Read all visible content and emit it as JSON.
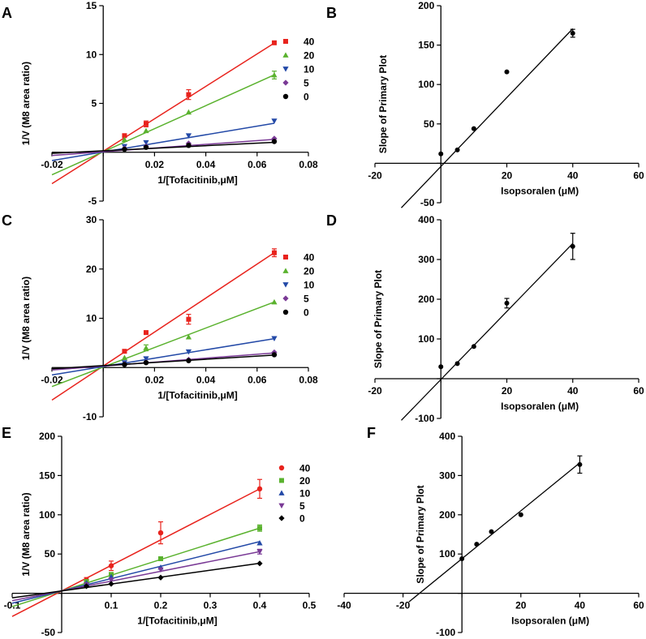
{
  "figure": {
    "panels": [
      "A",
      "B",
      "C",
      "D",
      "E",
      "F"
    ],
    "series_colors": {
      "40": "#e8231d",
      "20": "#5ab22e",
      "10": "#2349a7",
      "5": "#7a3a96",
      "0": "#000000"
    }
  },
  "chart_data": [
    {
      "panel": "A",
      "type": "line",
      "xlabel": "1/[Tofacitinib,μM]",
      "ylabel": "1/V (M8 area ratio)",
      "xlim": [
        -0.02,
        0.08
      ],
      "ylim": [
        -5,
        15
      ],
      "x_ticks": [
        -0.02,
        0,
        0.02,
        0.04,
        0.06,
        0.08
      ],
      "y_ticks": [
        -5,
        0,
        5,
        10,
        15
      ],
      "x_tick_labels": [
        "-0.02",
        "",
        "0.02",
        "0.04",
        "0.06",
        "0.08"
      ],
      "y_tick_labels": [
        "-5",
        "",
        "5",
        "10",
        "15"
      ],
      "fit_range": [
        -0.02,
        0.0667
      ],
      "legend_position": "top-right",
      "x": [
        0.0083,
        0.0167,
        0.0333,
        0.0667
      ],
      "series": [
        {
          "name": "40",
          "marker": "square",
          "values": [
            1.7,
            2.9,
            5.9,
            11.2
          ],
          "errors": [
            0,
            0.3,
            0.5,
            0
          ],
          "fit": {
            "slope": 166,
            "intercept": 0.1
          }
        },
        {
          "name": "20",
          "marker": "triangle-up",
          "values": [
            1.3,
            2.2,
            4.1,
            7.9
          ],
          "errors": [
            0,
            0,
            0,
            0.4
          ],
          "fit": {
            "slope": 118,
            "intercept": 0.05
          }
        },
        {
          "name": "10",
          "marker": "triangle-down",
          "values": [
            0.6,
            1.0,
            1.7,
            3.2
          ],
          "errors": [
            0,
            0,
            0,
            0
          ],
          "fit": {
            "slope": 44,
            "intercept": 0.03
          }
        },
        {
          "name": "5",
          "marker": "diamond",
          "values": [
            0.4,
            0.6,
            0.9,
            1.4
          ],
          "errors": [
            0,
            0,
            0,
            0
          ],
          "fit": {
            "slope": 19,
            "intercept": 0.05
          }
        },
        {
          "name": "0",
          "marker": "circle",
          "values": [
            0.3,
            0.5,
            0.7,
            1.1
          ],
          "errors": [
            0,
            0,
            0,
            0
          ],
          "fit": {
            "slope": 13,
            "intercept": 0.15
          }
        }
      ]
    },
    {
      "panel": "B",
      "type": "scatter",
      "xlabel": "Isopsoralen (μM)",
      "ylabel": "Slope of Primary Plot",
      "xlim": [
        -20,
        60
      ],
      "ylim": [
        -50,
        200
      ],
      "x_ticks": [
        -20,
        0,
        20,
        40,
        60
      ],
      "y_ticks": [
        -50,
        0,
        50,
        100,
        150,
        200
      ],
      "x_tick_labels": [
        "-20",
        "",
        "20",
        "40",
        "60"
      ],
      "y_tick_labels": [
        "-50",
        "",
        "50",
        "100",
        "150",
        "200"
      ],
      "fit_range": [
        -12,
        40
      ],
      "fit": {
        "slope": 4.37,
        "intercept": -4
      },
      "x": [
        0,
        5,
        10,
        20,
        40
      ],
      "values": [
        12,
        17,
        44,
        116,
        165
      ],
      "errors": [
        0,
        0,
        0,
        0,
        5
      ]
    },
    {
      "panel": "C",
      "type": "line",
      "xlabel": "1/[Tofacitinib,μM]",
      "ylabel": "1/V (M8 area ratio)",
      "xlim": [
        -0.02,
        0.08
      ],
      "ylim": [
        -10,
        30
      ],
      "x_ticks": [
        -0.02,
        0,
        0.02,
        0.04,
        0.06,
        0.08
      ],
      "y_ticks": [
        -10,
        0,
        10,
        20,
        30
      ],
      "x_tick_labels": [
        "-0.02",
        "",
        "0.02",
        "0.04",
        "0.06",
        "0.08"
      ],
      "y_tick_labels": [
        "-10",
        "",
        "10",
        "20",
        "30"
      ],
      "fit_range": [
        -0.02,
        0.0667
      ],
      "legend_position": "top-right",
      "x": [
        0.0083,
        0.0167,
        0.0333,
        0.0667
      ],
      "series": [
        {
          "name": "40",
          "marker": "square",
          "values": [
            3.3,
            7.1,
            9.8,
            23.3
          ],
          "errors": [
            0,
            0,
            1.0,
            0.8
          ],
          "fit": {
            "slope": 345,
            "intercept": 0.3
          }
        },
        {
          "name": "20",
          "marker": "triangle-up",
          "values": [
            2.0,
            4.0,
            6.2,
            13.3
          ],
          "errors": [
            0,
            0.6,
            0,
            0
          ],
          "fit": {
            "slope": 198,
            "intercept": 0.1
          }
        },
        {
          "name": "10",
          "marker": "triangle-down",
          "values": [
            1.0,
            1.8,
            3.2,
            5.9
          ],
          "errors": [
            0,
            0,
            0,
            0
          ],
          "fit": {
            "slope": 85,
            "intercept": 0.2
          }
        },
        {
          "name": "5",
          "marker": "diamond",
          "values": [
            0.7,
            1.1,
            1.6,
            3.1
          ],
          "errors": [
            0,
            0,
            0,
            0
          ],
          "fit": {
            "slope": 40,
            "intercept": 0.3
          }
        },
        {
          "name": "0",
          "marker": "circle",
          "values": [
            0.6,
            1.0,
            1.4,
            2.6
          ],
          "errors": [
            0,
            0,
            0,
            0
          ],
          "fit": {
            "slope": 32,
            "intercept": 0.4
          }
        }
      ]
    },
    {
      "panel": "D",
      "type": "scatter",
      "xlabel": "Isopsoralen (μM)",
      "ylabel": "Slope of Primary Plot",
      "xlim": [
        -20,
        60
      ],
      "ylim": [
        -100,
        400
      ],
      "x_ticks": [
        -20,
        0,
        20,
        40,
        60
      ],
      "y_ticks": [
        -100,
        0,
        100,
        200,
        300,
        400
      ],
      "x_tick_labels": [
        "-20",
        "",
        "20",
        "40",
        "60"
      ],
      "y_tick_labels": [
        "-100",
        "",
        "100",
        "200",
        "300",
        "400"
      ],
      "fit_range": [
        -12,
        40
      ],
      "fit": {
        "slope": 8.56,
        "intercept": -2
      },
      "x": [
        0,
        5,
        10,
        20,
        40
      ],
      "values": [
        30,
        38,
        81,
        190,
        333
      ],
      "errors": [
        0,
        0,
        0,
        12,
        33
      ]
    },
    {
      "panel": "E",
      "type": "line",
      "xlabel": "1/[Tofacitinib,μM]",
      "ylabel": "1/V (M8 area ratio)",
      "xlim": [
        -0.1,
        0.5
      ],
      "ylim": [
        -50,
        200
      ],
      "x_ticks": [
        -0.1,
        0,
        0.1,
        0.2,
        0.3,
        0.4,
        0.5
      ],
      "y_ticks": [
        -50,
        0,
        50,
        100,
        150,
        200
      ],
      "x_tick_labels": [
        "-0.1",
        "",
        "0.1",
        "0.2",
        "0.3",
        "0.4",
        "0.5"
      ],
      "y_tick_labels": [
        "-50",
        "",
        "50",
        "100",
        "150",
        "200"
      ],
      "fit_range": [
        -0.1,
        0.4
      ],
      "legend_position": "top-right",
      "x": [
        0.05,
        0.1,
        0.2,
        0.4
      ],
      "series": [
        {
          "name": "40",
          "marker": "circle",
          "values": [
            17,
            35,
            77,
            133
          ],
          "errors": [
            3,
            6,
            14,
            12
          ],
          "fit": {
            "slope": 325,
            "intercept": 3
          }
        },
        {
          "name": "20",
          "marker": "square",
          "values": [
            15,
            24,
            44,
            83
          ],
          "errors": [
            0,
            0,
            0,
            4
          ],
          "fit": {
            "slope": 200,
            "intercept": 3
          }
        },
        {
          "name": "10",
          "marker": "triangle-up",
          "values": [
            13,
            21,
            33,
            64
          ],
          "errors": [
            0,
            0,
            0,
            0
          ],
          "fit": {
            "slope": 157,
            "intercept": 3
          }
        },
        {
          "name": "5",
          "marker": "triangle-down",
          "values": [
            11,
            17,
            30,
            53
          ],
          "errors": [
            0,
            0,
            0,
            3
          ],
          "fit": {
            "slope": 125,
            "intercept": 3
          }
        },
        {
          "name": "0",
          "marker": "diamond",
          "values": [
            9,
            12,
            20,
            38
          ],
          "errors": [
            0,
            0,
            0,
            0
          ],
          "fit": {
            "slope": 88,
            "intercept": 3
          }
        }
      ]
    },
    {
      "panel": "F",
      "type": "scatter",
      "xlabel": "Isopsoralen (μM)",
      "ylabel": "Slope of Primary Plot",
      "xlim": [
        -40,
        60
      ],
      "ylim": [
        -100,
        400
      ],
      "x_ticks": [
        -40,
        -20,
        0,
        20,
        40,
        60
      ],
      "y_ticks": [
        -100,
        0,
        100,
        200,
        300,
        400
      ],
      "x_tick_labels": [
        "-40",
        "-20",
        "",
        "20",
        "40",
        "60"
      ],
      "y_tick_labels": [
        "-100",
        "",
        "100",
        "200",
        "300",
        "400"
      ],
      "fit_range": [
        -18,
        40
      ],
      "fit": {
        "slope": 6.11,
        "intercept": 88
      },
      "x": [
        0,
        5,
        10,
        20,
        40
      ],
      "values": [
        88,
        125,
        157,
        200,
        328
      ],
      "errors": [
        0,
        0,
        0,
        0,
        22
      ]
    }
  ]
}
